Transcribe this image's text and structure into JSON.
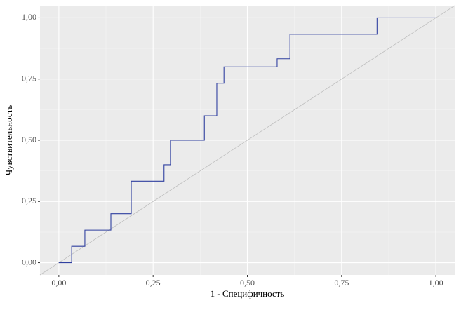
{
  "chart_data": {
    "type": "line",
    "x_label": "1 - Специфичность",
    "y_label": "Чувствительность",
    "x": [
      0,
      0.034,
      0.034,
      0.069,
      0.069,
      0.138,
      0.138,
      0.192,
      0.192,
      0.279,
      0.279,
      0.296,
      0.296,
      0.386,
      0.386,
      0.419,
      0.419,
      0.438,
      0.438,
      0.579,
      0.579,
      0.613,
      0.613,
      0.844,
      0.844,
      1
    ],
    "values": [
      0,
      0,
      0.067,
      0.067,
      0.133,
      0.133,
      0.2,
      0.2,
      0.333,
      0.333,
      0.4,
      0.4,
      0.5,
      0.5,
      0.6,
      0.6,
      0.733,
      0.733,
      0.8,
      0.8,
      0.833,
      0.833,
      0.933,
      0.933,
      1,
      1
    ],
    "color": "#3040a0",
    "reference_diagonal": true,
    "reference_color": "#bebebe",
    "xlim": [
      -0.05,
      1.05
    ],
    "ylim": [
      -0.05,
      1.05
    ],
    "xticks": [
      {
        "value": 0,
        "label": "0,00"
      },
      {
        "value": 0.25,
        "label": "0,25"
      },
      {
        "value": 0.5,
        "label": "0,50"
      },
      {
        "value": 0.75,
        "label": "0,75"
      },
      {
        "value": 1,
        "label": "1,00"
      }
    ],
    "yticks": [
      {
        "value": 0,
        "label": "0,00"
      },
      {
        "value": 0.25,
        "label": "0,25"
      },
      {
        "value": 0.5,
        "label": "0,50"
      },
      {
        "value": 0.75,
        "label": "0,75"
      },
      {
        "value": 1,
        "label": "1,00"
      }
    ],
    "grid": true
  }
}
